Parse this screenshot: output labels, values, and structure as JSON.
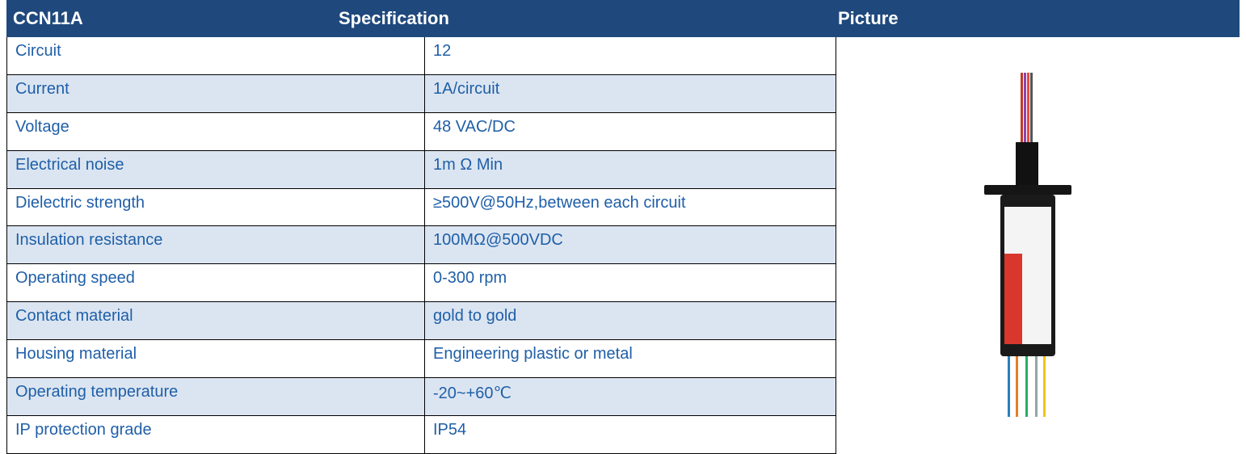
{
  "header": {
    "model": "CCN11A",
    "specification": "Specification",
    "picture": "Picture"
  },
  "table": {
    "rows": [
      [
        "Circuit",
        "12"
      ],
      [
        "Current",
        "1A/circuit"
      ],
      [
        "Voltage",
        "48 VAC/DC"
      ],
      [
        "Electrical noise",
        "1m Ω Min"
      ],
      [
        "Dielectric strength",
        "≥500V@50Hz,between each circuit"
      ],
      [
        "Insulation resistance",
        "100MΩ@500VDC"
      ],
      [
        "Operating speed",
        "0-300 rpm"
      ],
      [
        "Contact material",
        "gold to gold"
      ],
      [
        "Housing material",
        "Engineering plastic or metal"
      ],
      [
        "Operating temperature",
        "-20~+60℃"
      ],
      [
        "IP protection grade",
        "IP54"
      ]
    ]
  }
}
